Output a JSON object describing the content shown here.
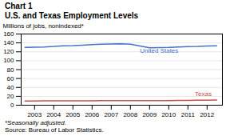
{
  "chart_data": {
    "type": "line",
    "title": "Chart 1",
    "subtitle": "U.S. and Texas Employment Levels",
    "ylabel": "Millions of jobs, nonindexed*",
    "notes": [
      "*Seasonally adjusted.",
      "Source: Bureau of Labor Statistics."
    ],
    "x": [
      2002.5,
      2003,
      2003.5,
      2004,
      2004.5,
      2005,
      2005.5,
      2006,
      2006.5,
      2007,
      2007.5,
      2008,
      2008.5,
      2009,
      2009.5,
      2010,
      2010.5,
      2011,
      2011.5,
      2012,
      2012.5
    ],
    "series": [
      {
        "name": "United States",
        "color": "#4472C4",
        "values": [
          130,
          130.5,
          131,
          132,
          133.5,
          134,
          135,
          136,
          137,
          137.5,
          138,
          137,
          133,
          129,
          129.5,
          130,
          131,
          131.5,
          132,
          133,
          133.5
        ]
      },
      {
        "name": "Texas",
        "color": "#C0504D",
        "values": [
          9.5,
          9.6,
          9.7,
          9.7,
          9.8,
          9.9,
          10.0,
          10.1,
          10.3,
          10.4,
          10.5,
          10.5,
          10.4,
          10.2,
          10.3,
          10.5,
          10.7,
          11.0,
          11.2,
          11.4,
          11.5
        ]
      }
    ],
    "xlim": [
      2002.3,
      2012.8
    ],
    "xticks": [
      2003,
      2004,
      2005,
      2006,
      2007,
      2008,
      2009,
      2010,
      2011,
      2012
    ],
    "ylim": [
      0,
      160
    ],
    "yticks": [
      0,
      20,
      40,
      60,
      80,
      100,
      120,
      140,
      160
    ],
    "grid": true,
    "annotations": [
      {
        "text": "United States",
        "x": 2009.5,
        "y": 115,
        "color": "#4472C4"
      },
      {
        "text": "Texas",
        "x": 2011.8,
        "y": 18,
        "color": "#C0504D"
      }
    ]
  }
}
